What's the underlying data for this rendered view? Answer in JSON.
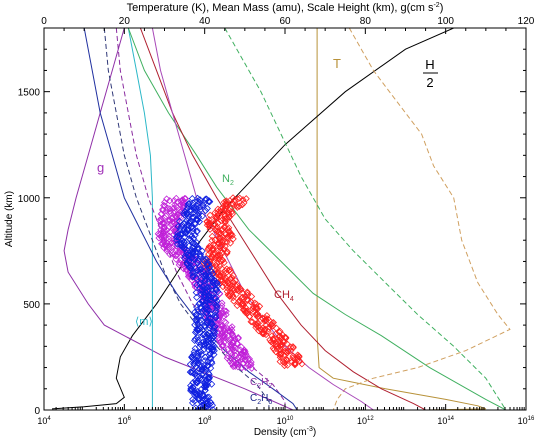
{
  "chart_data": {
    "type": "line",
    "top_axis": {
      "label": "Temperature (K), Mean Mass (amu), Scale Height (km), g(cm s",
      "label_sup": "-2",
      "label_end": ")",
      "range": [
        0,
        120
      ],
      "ticks": [
        0,
        20,
        40,
        60,
        80,
        100,
        120
      ]
    },
    "bottom_axis": {
      "label": "Density (cm",
      "label_sup": "-3",
      "label_end": ")",
      "scale": "log",
      "range_exp": [
        4,
        16
      ],
      "tick_exps": [
        4,
        6,
        8,
        10,
        12,
        14,
        16
      ]
    },
    "y_axis": {
      "label": "Altitude (km)",
      "range": [
        0,
        1800
      ],
      "ticks": [
        0,
        500,
        1000,
        1500
      ]
    },
    "annotations": {
      "T": "T",
      "H_num": "H",
      "H_den": "2",
      "g": "g",
      "m": "⟨m⟩",
      "N2_main": "N",
      "N2_sub": "2",
      "CH4_main": "CH",
      "CH4_sub": "4",
      "C2H2_main": "C",
      "C2H2_sub1": "2",
      "C2H2_mid": "H",
      "C2H2_sub2": "2",
      "C2H6_main": "C",
      "C2H6_sub1": "2",
      "C2H6_mid": "H",
      "C2H6_sub2": "6"
    },
    "series": [
      {
        "key": "T",
        "axis": "top",
        "color": "#b8923a",
        "style": "solid",
        "points": [
          [
            68,
            1800
          ],
          [
            68,
            350
          ],
          [
            68.5,
            200
          ],
          [
            72,
            150
          ],
          [
            85,
            100
          ],
          [
            100,
            50
          ],
          [
            108,
            20
          ],
          [
            110,
            5
          ],
          [
            95,
            0
          ]
        ]
      },
      {
        "key": "H2",
        "axis": "top",
        "color": "#000000",
        "style": "solid",
        "points": [
          [
            102,
            1800
          ],
          [
            90,
            1700
          ],
          [
            75,
            1500
          ],
          [
            60,
            1250
          ],
          [
            45,
            950
          ],
          [
            35,
            700
          ],
          [
            28,
            500
          ],
          [
            22,
            350
          ],
          [
            19,
            250
          ],
          [
            18,
            150
          ],
          [
            20,
            60
          ],
          [
            18,
            30
          ],
          [
            10,
            15
          ],
          [
            2,
            5
          ]
        ]
      },
      {
        "key": "g",
        "axis": "top",
        "color": "#9030a8",
        "style": "solid",
        "points": [
          [
            20,
            1800
          ],
          [
            17,
            1600
          ],
          [
            14,
            1400
          ],
          [
            11,
            1200
          ],
          [
            8,
            1000
          ],
          [
            6,
            850
          ],
          [
            5,
            750
          ],
          [
            6,
            650
          ],
          [
            11,
            500
          ],
          [
            15,
            400
          ],
          [
            20,
            350
          ],
          [
            30,
            250
          ],
          [
            50,
            100
          ],
          [
            62,
            0
          ]
        ]
      },
      {
        "key": "m",
        "axis": "top",
        "color": "#2cb8c8",
        "style": "solid",
        "points": [
          [
            21,
            1800
          ],
          [
            23,
            1600
          ],
          [
            25,
            1400
          ],
          [
            26.5,
            1200
          ],
          [
            27,
            1000
          ],
          [
            27,
            800
          ],
          [
            27,
            600
          ],
          [
            27,
            400
          ],
          [
            27,
            200
          ],
          [
            27,
            0
          ]
        ]
      },
      {
        "key": "N2",
        "axis": "log",
        "color": "#40b060",
        "style": "solid",
        "points": [
          [
            6.1,
            1800
          ],
          [
            6.5,
            1600
          ],
          [
            7.1,
            1400
          ],
          [
            7.8,
            1200
          ],
          [
            8.3,
            1050
          ],
          [
            9.1,
            850
          ],
          [
            9.9,
            700
          ],
          [
            10.7,
            550
          ],
          [
            11.5,
            450
          ],
          [
            12.4,
            350
          ],
          [
            13.6,
            200
          ],
          [
            15.0,
            50
          ],
          [
            15.5,
            0
          ]
        ]
      },
      {
        "key": "N2_dash",
        "axis": "log",
        "color": "#40b060",
        "style": "dashed",
        "points": [
          [
            8.5,
            1800
          ],
          [
            8.8,
            1700
          ],
          [
            9.4,
            1500
          ],
          [
            9.9,
            1300
          ],
          [
            10.4,
            1100
          ],
          [
            11.0,
            900
          ],
          [
            11.7,
            750
          ],
          [
            12.5,
            600
          ],
          [
            13.3,
            450
          ],
          [
            14.2,
            300
          ],
          [
            15.0,
            150
          ],
          [
            15.5,
            0
          ]
        ]
      },
      {
        "key": "CH4",
        "axis": "log",
        "color": "#b02030",
        "style": "solid",
        "points": [
          [
            6.4,
            1800
          ],
          [
            6.8,
            1600
          ],
          [
            7.2,
            1400
          ],
          [
            7.7,
            1200
          ],
          [
            8.3,
            1000
          ],
          [
            8.8,
            850
          ],
          [
            9.3,
            700
          ],
          [
            9.8,
            550
          ],
          [
            10.4,
            400
          ],
          [
            11.0,
            280
          ],
          [
            11.7,
            180
          ],
          [
            12.4,
            100
          ],
          [
            13.2,
            30
          ],
          [
            13.5,
            0
          ]
        ]
      },
      {
        "key": "orange_dash",
        "axis": "log",
        "color": "#d0a060",
        "style": "dashed",
        "points": [
          [
            11.6,
            1800
          ],
          [
            11.9,
            1700
          ],
          [
            12.2,
            1600
          ],
          [
            12.6,
            1500
          ],
          [
            13.0,
            1400
          ],
          [
            13.4,
            1300
          ],
          [
            13.7,
            1150
          ],
          [
            14.2,
            1000
          ],
          [
            14.4,
            800
          ],
          [
            14.8,
            600
          ],
          [
            15.3,
            450
          ],
          [
            15.6,
            380
          ],
          [
            14.5,
            280
          ],
          [
            13.3,
            200
          ],
          [
            12.2,
            150
          ],
          [
            11.5,
            100
          ],
          [
            11.3,
            50
          ],
          [
            11.2,
            0
          ]
        ]
      },
      {
        "key": "purple_dash",
        "axis": "log",
        "color": "#8a2ca0",
        "style": "dashed",
        "points": [
          [
            5.8,
            1800
          ],
          [
            5.9,
            1600
          ],
          [
            6.1,
            1400
          ],
          [
            6.3,
            1200
          ],
          [
            6.6,
            1000
          ],
          [
            6.9,
            850
          ],
          [
            7.3,
            650
          ],
          [
            7.7,
            500
          ],
          [
            8.2,
            400
          ],
          [
            8.7,
            300
          ],
          [
            9.2,
            200
          ],
          [
            9.7,
            120
          ],
          [
            10.0,
            40
          ],
          [
            10.0,
            0
          ]
        ]
      },
      {
        "key": "navy_dash",
        "axis": "log",
        "color": "#303878",
        "style": "dashed",
        "points": [
          [
            5.5,
            1800
          ],
          [
            5.6,
            1600
          ],
          [
            5.8,
            1400
          ],
          [
            6.0,
            1200
          ],
          [
            6.3,
            1000
          ],
          [
            6.6,
            850
          ],
          [
            7.0,
            650
          ],
          [
            7.4,
            500
          ],
          [
            7.8,
            400
          ],
          [
            8.3,
            300
          ],
          [
            8.8,
            200
          ],
          [
            9.3,
            120
          ],
          [
            9.6,
            40
          ],
          [
            9.6,
            0
          ]
        ]
      },
      {
        "key": "blue_solid",
        "axis": "log",
        "color": "#2030a0",
        "style": "solid",
        "points": [
          [
            5.0,
            1800
          ],
          [
            5.2,
            1600
          ],
          [
            5.4,
            1400
          ],
          [
            5.7,
            1200
          ],
          [
            6.0,
            1000
          ],
          [
            6.4,
            850
          ],
          [
            6.8,
            700
          ],
          [
            7.3,
            550
          ],
          [
            7.9,
            400
          ],
          [
            8.5,
            280
          ],
          [
            9.1,
            180
          ],
          [
            9.7,
            100
          ],
          [
            10.2,
            30
          ],
          [
            10.3,
            0
          ]
        ]
      },
      {
        "key": "magenta_solid",
        "axis": "log",
        "color": "#a848b8",
        "style": "solid",
        "points": [
          [
            6.7,
            1800
          ],
          [
            6.9,
            1600
          ],
          [
            7.2,
            1400
          ],
          [
            7.5,
            1200
          ],
          [
            7.8,
            1000
          ],
          [
            8.2,
            850
          ],
          [
            8.6,
            700
          ],
          [
            9.0,
            550
          ],
          [
            9.5,
            420
          ],
          [
            10.0,
            300
          ],
          [
            10.6,
            200
          ],
          [
            11.2,
            120
          ],
          [
            11.9,
            40
          ],
          [
            12.2,
            0
          ]
        ]
      }
    ],
    "scatter": [
      {
        "key": "CH4_obs",
        "color": "#ff2020",
        "alt_range": [
          210,
          1000
        ],
        "anchors": [
          [
            1000,
            8.85
          ],
          [
            900,
            8.3
          ],
          [
            800,
            8.45
          ],
          [
            700,
            8.2
          ],
          [
            600,
            8.6
          ],
          [
            500,
            9.05
          ],
          [
            400,
            9.5
          ],
          [
            300,
            9.95
          ],
          [
            210,
            10.2
          ]
        ]
      },
      {
        "key": "C2H2_obs",
        "color": "#c020d8",
        "alt_range": [
          200,
          1000
        ],
        "anchors": [
          [
            1000,
            7.3
          ],
          [
            900,
            7.15
          ],
          [
            800,
            7.1
          ],
          [
            700,
            7.55
          ],
          [
            600,
            8.0
          ],
          [
            500,
            8.2
          ],
          [
            400,
            8.4
          ],
          [
            300,
            8.7
          ],
          [
            200,
            8.95
          ]
        ]
      },
      {
        "key": "C2H6_obs",
        "color": "#1020e0",
        "alt_range": [
          0,
          1000
        ],
        "anchors": [
          [
            1000,
            7.95
          ],
          [
            900,
            7.65
          ],
          [
            800,
            7.55
          ],
          [
            700,
            7.8
          ],
          [
            600,
            8.05
          ],
          [
            500,
            8.05
          ],
          [
            400,
            8.0
          ],
          [
            300,
            8.0
          ],
          [
            200,
            7.9
          ],
          [
            100,
            7.9
          ],
          [
            0,
            7.95
          ]
        ]
      }
    ]
  }
}
